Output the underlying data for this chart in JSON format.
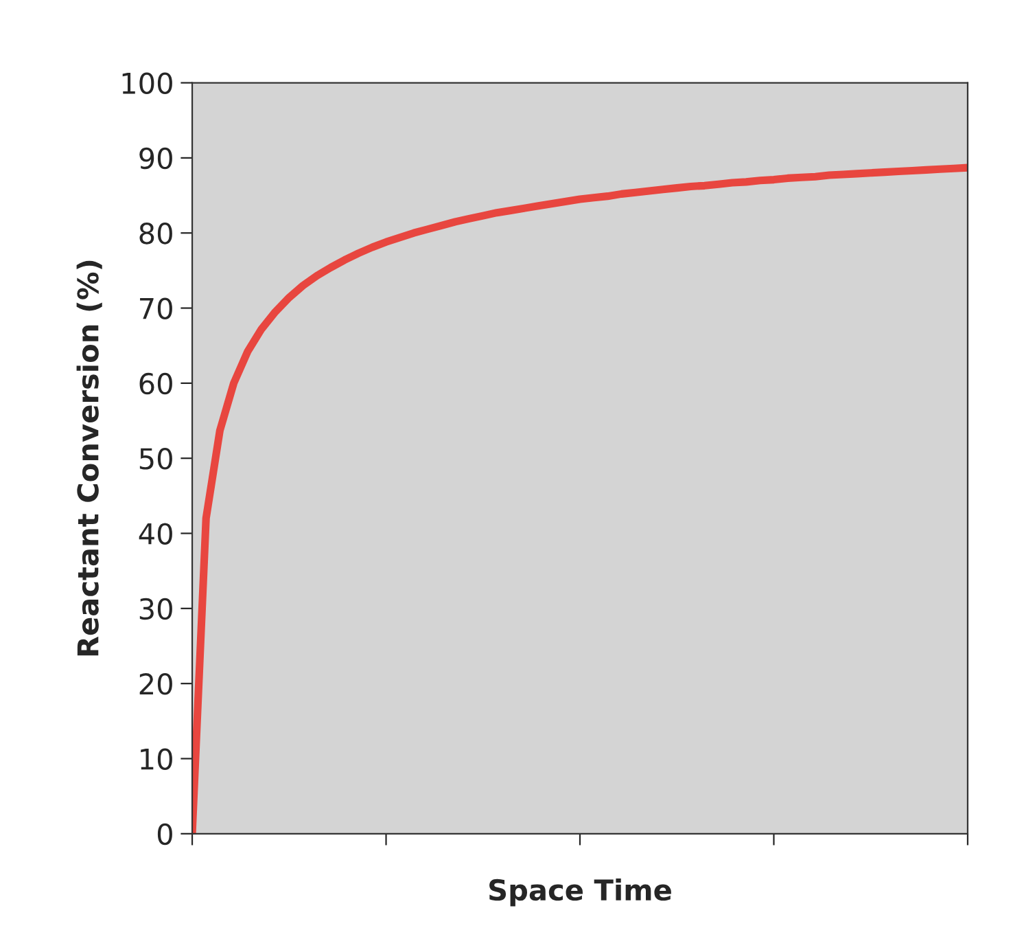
{
  "chart_data": {
    "type": "line",
    "xlabel": "Space Time",
    "ylabel": "Reactant Conversion (%)",
    "categories": [
      null,
      null,
      null,
      null,
      null,
      null,
      null,
      null,
      null,
      null,
      null,
      null,
      null,
      null,
      null,
      null,
      null,
      null,
      null,
      null,
      null,
      null,
      null,
      null,
      null,
      null,
      null,
      null,
      null,
      null,
      null,
      null,
      null,
      null,
      null,
      null,
      null,
      null,
      null,
      null,
      null,
      null,
      null,
      null,
      null,
      null,
      null,
      null,
      null,
      null,
      null,
      null,
      null,
      null,
      null,
      null,
      null
    ],
    "series": [
      {
        "color": "#e8463f",
        "values": [
          0,
          42.0,
          53.7,
          60.0,
          64.2,
          67.2,
          69.5,
          71.4,
          73.0,
          74.3,
          75.4,
          76.4,
          77.3,
          78.1,
          78.8,
          79.4,
          80.0,
          80.5,
          81.0,
          81.5,
          81.9,
          82.3,
          82.7,
          83.0,
          83.3,
          83.6,
          83.9,
          84.2,
          84.5,
          84.7,
          84.9,
          85.2,
          85.4,
          85.6,
          85.8,
          86.0,
          86.2,
          86.3,
          86.5,
          86.7,
          86.8,
          87.0,
          87.1,
          87.3,
          87.4,
          87.5,
          87.7,
          87.8,
          87.9,
          88.0,
          88.1,
          88.2,
          88.3,
          88.4,
          88.5,
          88.6,
          88.7
        ]
      }
    ],
    "ylim": [
      0,
      100
    ],
    "yticks": [
      0,
      10,
      20,
      30,
      40,
      50,
      60,
      70,
      80,
      90,
      100
    ],
    "grid": false,
    "legend": false,
    "marker": "none",
    "line_style": "solid"
  }
}
